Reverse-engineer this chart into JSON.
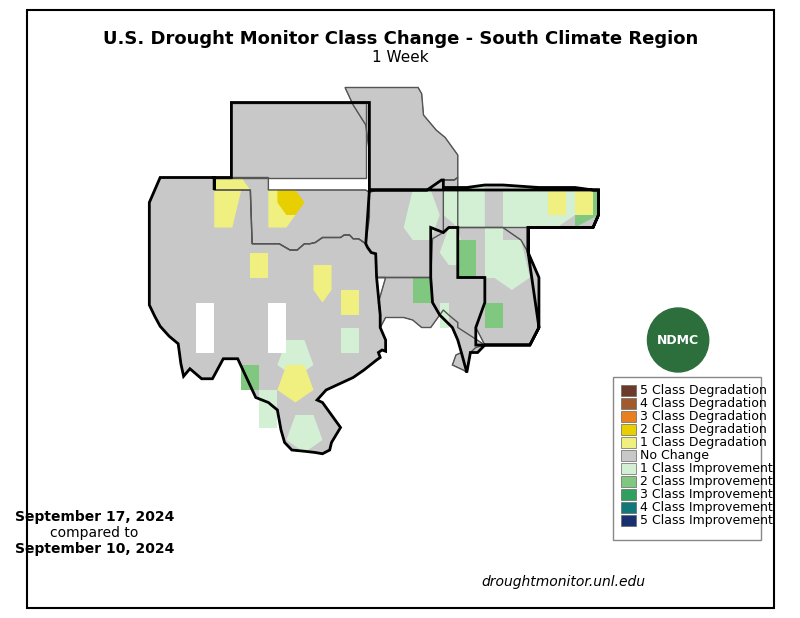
{
  "title_line1": "U.S. Drought Monitor Class Change - South Climate Region",
  "title_line2": "1 Week",
  "date_text_line1": "September 17, 2024",
  "date_text_line2": "compared to",
  "date_text_line3": "September 10, 2024",
  "website": "droughtmonitor.unl.edu",
  "background_color": "#ffffff",
  "border_color": "#000000",
  "legend_items": [
    {
      "label": "5 Class Degradation",
      "color": "#6b3a2a"
    },
    {
      "label": "4 Class Degradation",
      "color": "#a05a2c"
    },
    {
      "label": "3 Class Degradation",
      "color": "#e88020"
    },
    {
      "label": "2 Class Degradation",
      "color": "#e8d000"
    },
    {
      "label": "1 Class Degradation",
      "color": "#f0f080"
    },
    {
      "label": "No Change",
      "color": "#c8c8c8"
    },
    {
      "label": "1 Class Improvement",
      "color": "#d4f0d4"
    },
    {
      "label": "2 Class Improvement",
      "color": "#80c880"
    },
    {
      "label": "3 Class Improvement",
      "color": "#30a060"
    },
    {
      "label": "4 Class Improvement",
      "color": "#107878"
    },
    {
      "label": "5 Class Improvement",
      "color": "#183070"
    }
  ],
  "title_fontsize": 13,
  "subtitle_fontsize": 11,
  "legend_fontsize": 9,
  "date_fontsize": 10,
  "website_fontsize": 10
}
